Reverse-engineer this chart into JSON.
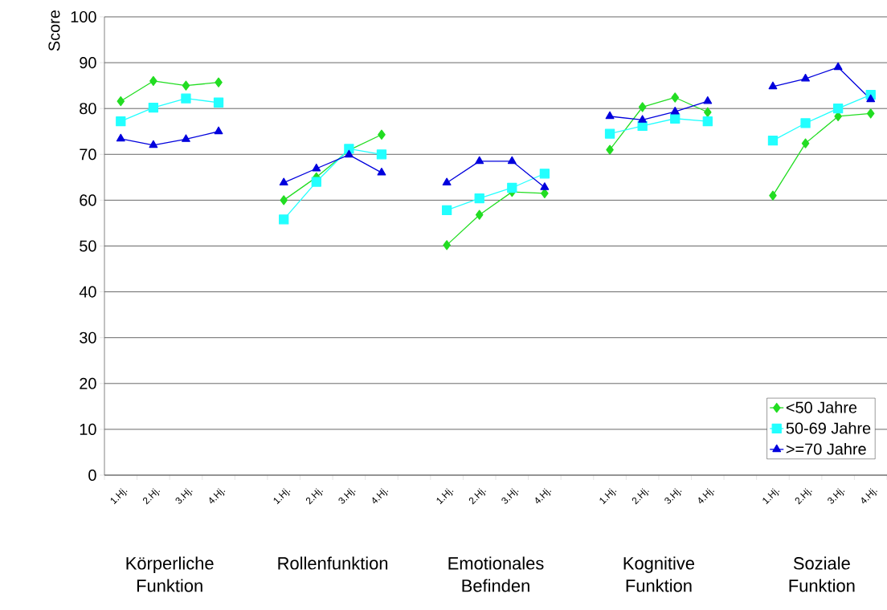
{
  "chart_data": {
    "type": "line",
    "ylabel": "Score",
    "categories": [
      "1.Hj.",
      "2.Hj.",
      "3.Hj.",
      "4.Hj.",
      null,
      "1.Hj.",
      "2.Hj.",
      "3.Hj.",
      "4.Hj.",
      null,
      "1.Hj.",
      "2.Hj.",
      "3.Hj.",
      "4.Hj.",
      null,
      "1.Hj.",
      "2.Hj.",
      "3.Hj.",
      "4.Hj.",
      null,
      "1.Hj.",
      "2.Hj.",
      "3.Hj.",
      "4.Hj."
    ],
    "series": [
      {
        "name": "<50 Jahre",
        "color": "#22dd22",
        "marker": "diamond",
        "values": [
          81.6,
          86,
          85,
          85.7,
          null,
          60,
          65,
          70.9,
          74.3,
          null,
          50.2,
          56.8,
          61.8,
          61.5,
          null,
          71,
          80.3,
          82.4,
          79.2,
          null,
          61,
          72.4,
          78.3,
          78.9
        ]
      },
      {
        "name": "50-69 Jahre",
        "color": "#22ffff",
        "marker": "square",
        "values": [
          77.2,
          80.2,
          82.2,
          81.3,
          null,
          55.8,
          64,
          71.2,
          70,
          null,
          57.8,
          60.4,
          62.7,
          65.8,
          null,
          74.5,
          76.2,
          77.8,
          77.2,
          null,
          73,
          76.8,
          80,
          83
        ]
      },
      {
        "name": ">=70 Jahre",
        "color": "#0000dd",
        "marker": "triangle",
        "values": [
          73.4,
          72,
          73.3,
          75,
          null,
          63.8,
          66.9,
          69.9,
          66,
          null,
          63.8,
          68.5,
          68.5,
          62.8,
          null,
          78.3,
          77.5,
          79.3,
          81.6,
          null,
          84.8,
          86.5,
          89,
          82
        ]
      }
    ],
    "ylim": [
      0,
      100
    ],
    "yticks": [
      0,
      10,
      20,
      30,
      40,
      50,
      60,
      70,
      80,
      90,
      100
    ],
    "grid": "y",
    "legend": "bottom right",
    "line_style": "solid",
    "annotations": [
      "Körperliche Funktion",
      "Rollenfunktion",
      "Emotionales Befinden",
      "Kognitive Funktion",
      "Soziale Funktion"
    ]
  }
}
